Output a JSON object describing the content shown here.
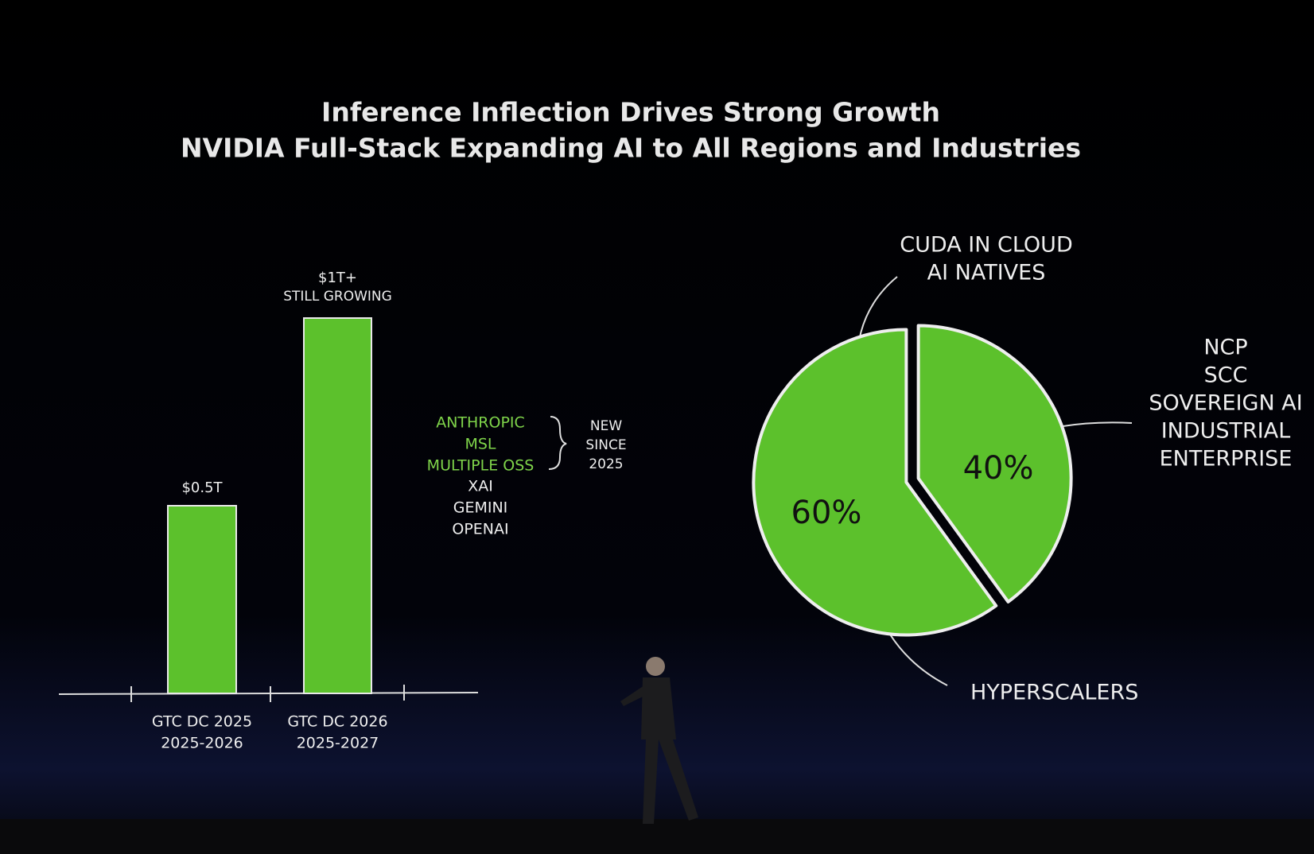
{
  "title": [
    "Inference Inflection Drives Strong Growth",
    "NVIDIA Full-Stack Expanding AI to All Regions and Industries"
  ],
  "chart_data": [
    {
      "type": "bar",
      "categories": [
        [
          "GTC DC 2025",
          "2025-2026"
        ],
        [
          "GTC DC 2026",
          "2025-2027"
        ]
      ],
      "values": [
        0.5,
        1
      ],
      "value_labels": [
        "$0.5T",
        "$1T+"
      ],
      "annotation": "STILL GROWING",
      "color": "#5cc12c",
      "new_customers": [
        "ANTHROPIC",
        "MSL",
        "MULTIPLE OSS"
      ],
      "customers": [
        "XAI",
        "GEMINI",
        "OPENAI"
      ],
      "new_note": [
        "NEW",
        "SINCE",
        "2025"
      ]
    },
    {
      "type": "pie",
      "values": [
        60,
        40
      ],
      "value_labels": [
        "60%",
        "40%"
      ],
      "callouts": [
        [
          [
            "CUDA IN CLOUD",
            "AI NATIVES"
          ],
          [
            "HYPERSCALERS"
          ]
        ],
        [
          [
            "NCP",
            "SCC",
            "SOVEREIGN AI",
            "INDUSTRIAL",
            "ENTERPRISE"
          ]
        ]
      ],
      "color": "#5cc12c"
    }
  ]
}
